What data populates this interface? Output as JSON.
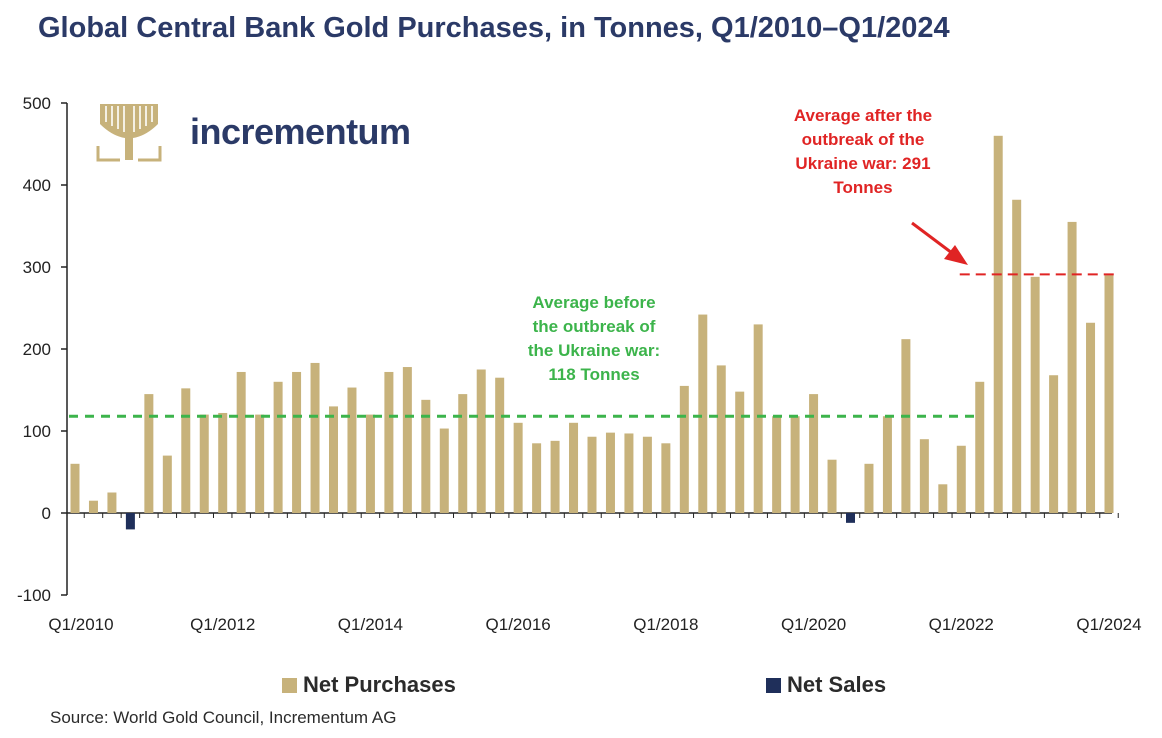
{
  "brand": {
    "name": "incrementum",
    "logo_icon": "tree-logo-icon"
  },
  "colors": {
    "purchases": "#c7b27b",
    "sales": "#1f2f5a",
    "avg_before": "#3cb44b",
    "avg_after": "#e02424",
    "title": "#2b3a67"
  },
  "legend": {
    "purchases_label": "Net Purchases",
    "sales_label": "Net Sales"
  },
  "source": "Source: World Gold Council, Incrementum AG",
  "chart_data": {
    "type": "bar",
    "title": "Global Central Bank Gold Purchases, in Tonnes, Q1/2010–Q1/2024",
    "xlabel": "",
    "ylabel": "",
    "ylim": [
      -100,
      500
    ],
    "yticks": [
      -100,
      0,
      100,
      200,
      300,
      400,
      500
    ],
    "xtick_labels": [
      {
        "index": 0,
        "label": "Q1/2010"
      },
      {
        "index": 8,
        "label": "Q1/2012"
      },
      {
        "index": 16,
        "label": "Q1/2014"
      },
      {
        "index": 24,
        "label": "Q1/2016"
      },
      {
        "index": 32,
        "label": "Q1/2018"
      },
      {
        "index": 40,
        "label": "Q1/2020"
      },
      {
        "index": 48,
        "label": "Q1/2022"
      },
      {
        "index": 56,
        "label": "Q1/2024"
      }
    ],
    "categories": [
      "Q1/2010",
      "Q2/2010",
      "Q3/2010",
      "Q4/2010",
      "Q1/2011",
      "Q2/2011",
      "Q3/2011",
      "Q4/2011",
      "Q1/2012",
      "Q2/2012",
      "Q3/2012",
      "Q4/2012",
      "Q1/2013",
      "Q2/2013",
      "Q3/2013",
      "Q4/2013",
      "Q1/2014",
      "Q2/2014",
      "Q3/2014",
      "Q4/2014",
      "Q1/2015",
      "Q2/2015",
      "Q3/2015",
      "Q4/2015",
      "Q1/2016",
      "Q2/2016",
      "Q3/2016",
      "Q4/2016",
      "Q1/2017",
      "Q2/2017",
      "Q3/2017",
      "Q4/2017",
      "Q1/2018",
      "Q2/2018",
      "Q3/2018",
      "Q4/2018",
      "Q1/2019",
      "Q2/2019",
      "Q3/2019",
      "Q4/2019",
      "Q1/2020",
      "Q2/2020",
      "Q3/2020",
      "Q4/2020",
      "Q1/2021",
      "Q2/2021",
      "Q3/2021",
      "Q4/2021",
      "Q1/2022",
      "Q2/2022",
      "Q3/2022",
      "Q4/2022",
      "Q1/2023",
      "Q2/2023",
      "Q3/2023",
      "Q4/2023",
      "Q1/2024"
    ],
    "values": [
      60,
      15,
      25,
      -20,
      145,
      70,
      152,
      120,
      122,
      172,
      120,
      160,
      172,
      183,
      130,
      153,
      120,
      172,
      178,
      138,
      103,
      145,
      175,
      165,
      110,
      85,
      88,
      110,
      93,
      98,
      97,
      93,
      85,
      155,
      242,
      180,
      148,
      230,
      118,
      118,
      145,
      65,
      -12,
      60,
      118,
      212,
      90,
      35,
      82,
      160,
      460,
      382,
      288,
      168,
      355,
      232,
      290
    ],
    "series": [
      {
        "name": "Net Purchases",
        "sign": "positive"
      },
      {
        "name": "Net Sales",
        "sign": "negative"
      }
    ],
    "reference_lines": [
      {
        "name": "average-before",
        "value": 118,
        "from_index": 0,
        "to_index": 48,
        "label_lines": [
          "Average before",
          "the outbreak of",
          "the Ukraine war:",
          "118 Tonnes"
        ]
      },
      {
        "name": "average-after",
        "value": 291,
        "from_index": 49,
        "to_index": 56,
        "label_lines": [
          "Average after the",
          "outbreak of the",
          "Ukraine war: 291",
          "Tonnes"
        ]
      }
    ]
  }
}
